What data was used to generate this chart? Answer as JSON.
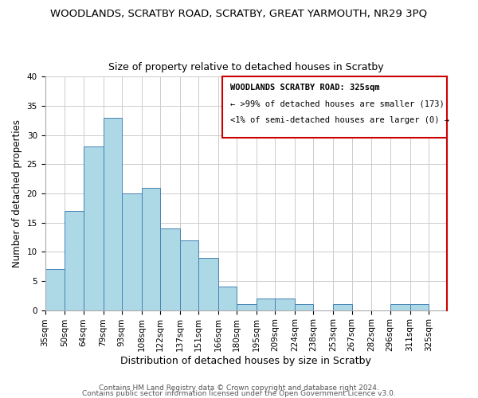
{
  "title": "WOODLANDS, SCRATBY ROAD, SCRATBY, GREAT YARMOUTH, NR29 3PQ",
  "subtitle": "Size of property relative to detached houses in Scratby",
  "xlabel": "Distribution of detached houses by size in Scratby",
  "ylabel": "Number of detached properties",
  "bin_edges": [
    35,
    50,
    64,
    79,
    93,
    108,
    122,
    137,
    151,
    166,
    180,
    195,
    209,
    224,
    238,
    253,
    267,
    282,
    296,
    311,
    325
  ],
  "bin_labels": [
    "35sqm",
    "50sqm",
    "64sqm",
    "79sqm",
    "93sqm",
    "108sqm",
    "122sqm",
    "137sqm",
    "151sqm",
    "166sqm",
    "180sqm",
    "195sqm",
    "209sqm",
    "224sqm",
    "238sqm",
    "253sqm",
    "267sqm",
    "282sqm",
    "296sqm",
    "311sqm",
    "325sqm"
  ],
  "counts": [
    7,
    17,
    28,
    33,
    20,
    21,
    14,
    12,
    9,
    4,
    1,
    2,
    2,
    1,
    0,
    1,
    0,
    0,
    1,
    1
  ],
  "bar_color": "#add8e6",
  "bar_edge_color": "#4682b4",
  "ylim": [
    0,
    40
  ],
  "yticks": [
    0,
    5,
    10,
    15,
    20,
    25,
    30,
    35,
    40
  ],
  "grid_color": "#cccccc",
  "background_color": "#ffffff",
  "legend_title": "WOODLANDS SCRATBY ROAD: 325sqm",
  "legend_line1": "← >99% of detached houses are smaller (173)",
  "legend_line2": "<1% of semi-detached houses are larger (0) →",
  "legend_box_color": "#ffffff",
  "legend_border_color": "#cc0000",
  "footer_line1": "Contains HM Land Registry data © Crown copyright and database right 2024.",
  "footer_line2": "Contains public sector information licensed under the Open Government Licence v3.0.",
  "title_fontsize": 9.5,
  "subtitle_fontsize": 9,
  "xlabel_fontsize": 9,
  "ylabel_fontsize": 8.5,
  "tick_fontsize": 7.5,
  "footer_fontsize": 6.5
}
